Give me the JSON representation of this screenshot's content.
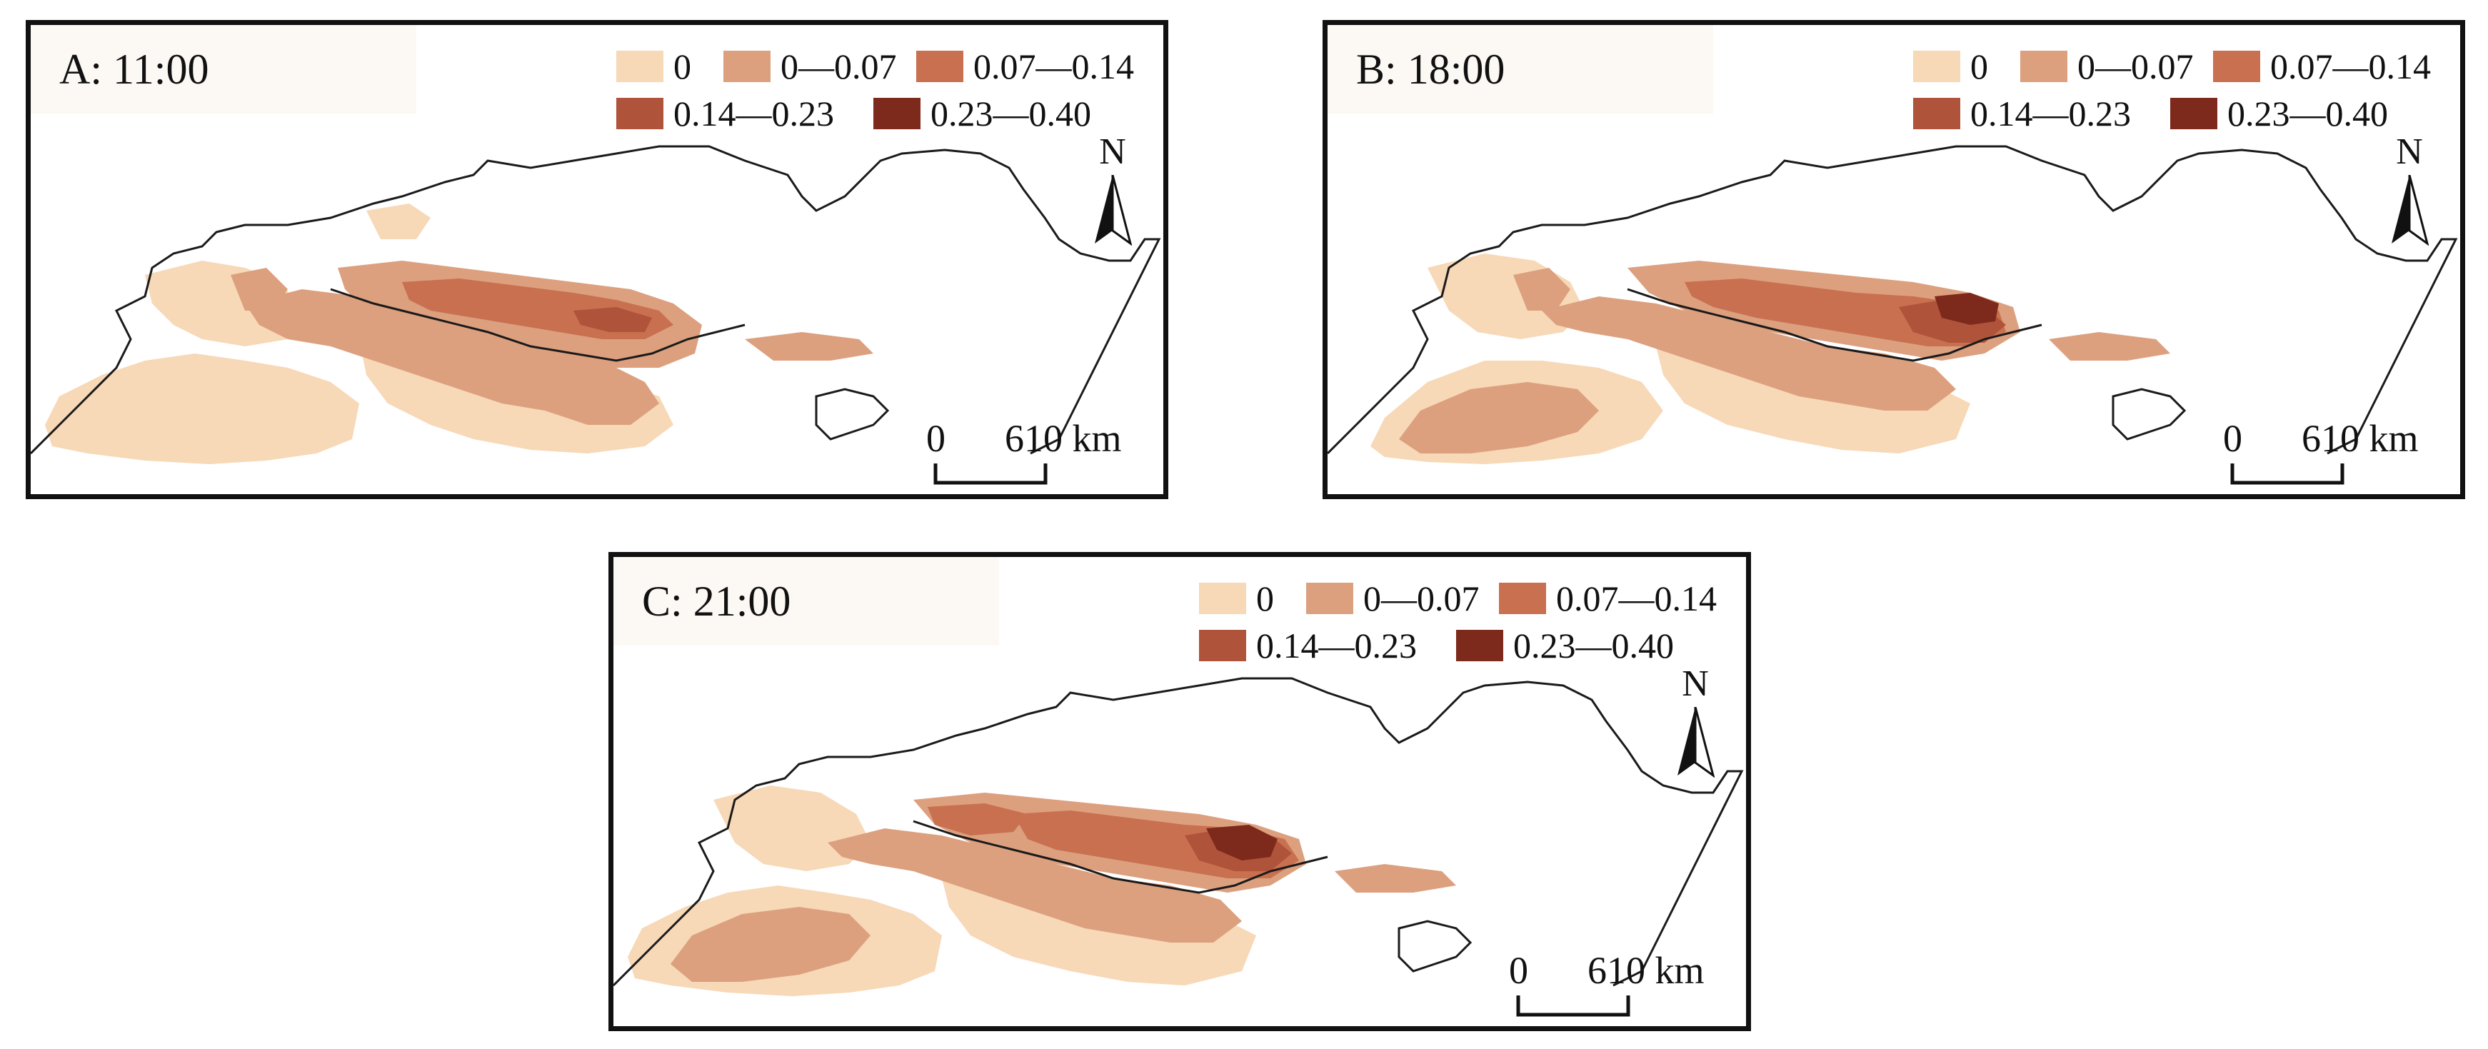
{
  "colors": {
    "class_0": "#f7d8b7",
    "class_1": "#dca07f",
    "class_2": "#c8704f",
    "class_3": "#b0533b",
    "class_4": "#7d2a1c",
    "boundary": "#1a1a1a"
  },
  "legend": [
    {
      "label": "0",
      "color": "#f7d8b7"
    },
    {
      "label": "0—0.07",
      "color": "#dca07f"
    },
    {
      "label": "0.07—0.14",
      "color": "#c8704f"
    },
    {
      "label": "0.14—0.23",
      "color": "#b0533b"
    },
    {
      "label": "0.23—0.40",
      "color": "#7d2a1c"
    }
  ],
  "north_label": "N",
  "scale": {
    "zero": "0",
    "distance": "610 km"
  },
  "panels": [
    {
      "title": "A: 11:00"
    },
    {
      "title": "B: 18:00"
    },
    {
      "title": "C: 21:00"
    }
  ]
}
